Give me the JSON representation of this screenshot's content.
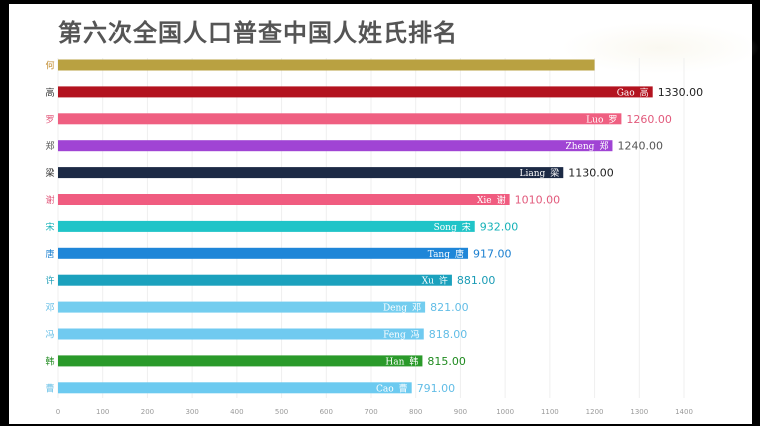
{
  "chart_data": {
    "type": "bar",
    "orientation": "horizontal",
    "title": "第六次全国人口普查中国人姓氏排名",
    "categories": [
      "何",
      "高",
      "罗",
      "郑",
      "梁",
      "谢",
      "宋",
      "唐",
      "许",
      "邓",
      "冯",
      "韩",
      "曹"
    ],
    "pinyin": [
      "",
      "Gao",
      "Luo",
      "Zheng",
      "Liang",
      "Xie",
      "Song",
      "Tang",
      "Xu",
      "Deng",
      "Feng",
      "Han",
      "Cao"
    ],
    "values": [
      1200,
      1330,
      1260,
      1240,
      1130,
      1010,
      932,
      917,
      881,
      821,
      818,
      815,
      791
    ],
    "value_labels": [
      "",
      "1330.00",
      "1260.00",
      "1240.00",
      "1130.00",
      "1010.00",
      "932.00",
      "917.00",
      "881.00",
      "821.00",
      "818.00",
      "815.00",
      "791.00"
    ],
    "colors": [
      "#b9a141",
      "#b3131f",
      "#ef5f81",
      "#a044d4",
      "#1c2a45",
      "#f05c80",
      "#20c4c8",
      "#1f86d8",
      "#1ba1bd",
      "#73cdef",
      "#70caf0",
      "#2a9a2a",
      "#6ccaf0"
    ],
    "label_colors": [
      "#333333",
      "#222222",
      "#e25a7c",
      "#555555",
      "#222222",
      "#e25a7c",
      "#16b2b8",
      "#1a7fd0",
      "#1a9bb5",
      "#62bde6",
      "#62bde6",
      "#1f8a1f",
      "#62bde6"
    ],
    "xlim": [
      0,
      1400
    ],
    "xticks": [
      0,
      100,
      200,
      300,
      400,
      500,
      600,
      700,
      800,
      900,
      1000,
      1100,
      1200,
      1300,
      1400
    ],
    "grid": true
  }
}
